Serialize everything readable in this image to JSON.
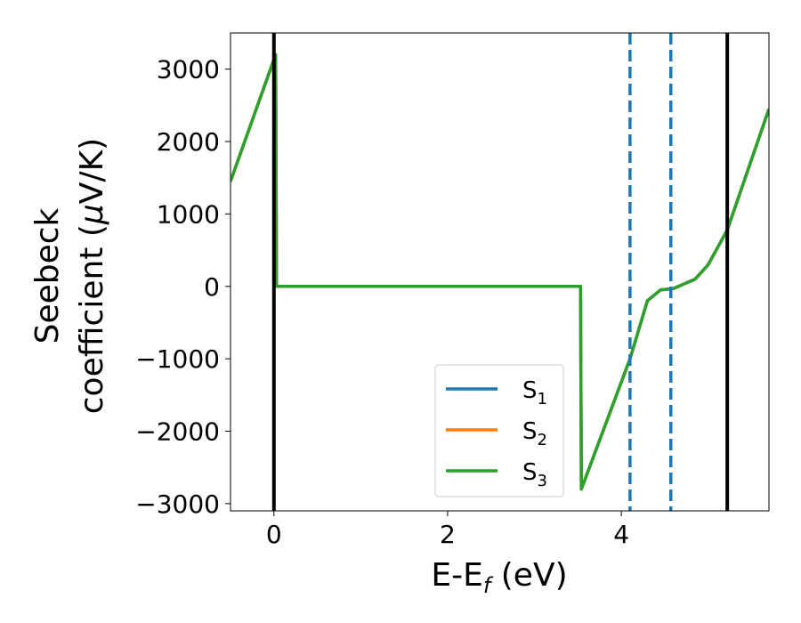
{
  "chart_data": {
    "type": "line",
    "xlabel": "E-E",
    "xlabel_sub": "f",
    "xlabel_unit": " (eV)",
    "ylabel_line1": "Seebeck",
    "ylabel_line2": "coefficient  (",
    "ylabel_mu": "μ",
    "ylabel_unit": "V/K)",
    "xlim": [
      -0.5,
      5.7
    ],
    "ylim": [
      -3100,
      3500
    ],
    "x_ticks": [
      0,
      2,
      4
    ],
    "x_tick_labels": [
      "0",
      "2",
      "4"
    ],
    "y_ticks": [
      3000,
      2000,
      1000,
      0,
      -1000,
      -2000,
      -3000
    ],
    "y_tick_labels": [
      "3000",
      "2000",
      "1000",
      "0",
      "−1000",
      "−2000",
      "−3000"
    ],
    "grid": false,
    "legend_position": "lower-right",
    "vertical_lines": [
      {
        "x": 0.0,
        "style": "solid",
        "color": "#000000"
      },
      {
        "x": 5.22,
        "style": "solid",
        "color": "#000000"
      },
      {
        "x": 4.1,
        "style": "dashed",
        "color": "#1f77b4"
      },
      {
        "x": 4.57,
        "style": "dashed",
        "color": "#1f77b4"
      }
    ],
    "series": [
      {
        "name": "S",
        "sub": "1",
        "color": "#1f77b4",
        "points": [
          [
            -0.5,
            1450
          ],
          [
            0.02,
            3200
          ],
          [
            0.03,
            0
          ],
          [
            3.53,
            0
          ],
          [
            3.54,
            -2800
          ],
          [
            4.1,
            -1000
          ],
          [
            4.3,
            -200
          ],
          [
            4.45,
            -50
          ],
          [
            4.6,
            -30
          ],
          [
            4.85,
            100
          ],
          [
            5.0,
            300
          ],
          [
            5.22,
            780
          ],
          [
            5.7,
            2450
          ]
        ]
      },
      {
        "name": "S",
        "sub": "2",
        "color": "#ff7f0e",
        "points": [
          [
            -0.5,
            1450
          ],
          [
            0.02,
            3200
          ],
          [
            0.03,
            0
          ],
          [
            3.53,
            0
          ],
          [
            3.54,
            -2800
          ],
          [
            4.1,
            -1000
          ],
          [
            4.3,
            -200
          ],
          [
            4.45,
            -50
          ],
          [
            4.6,
            -30
          ],
          [
            4.85,
            100
          ],
          [
            5.0,
            300
          ],
          [
            5.22,
            780
          ],
          [
            5.7,
            2450
          ]
        ]
      },
      {
        "name": "S",
        "sub": "3",
        "color": "#2ca02c",
        "points": [
          [
            -0.5,
            1450
          ],
          [
            0.02,
            3200
          ],
          [
            0.03,
            0
          ],
          [
            3.53,
            0
          ],
          [
            3.54,
            -2800
          ],
          [
            4.1,
            -1000
          ],
          [
            4.3,
            -200
          ],
          [
            4.45,
            -50
          ],
          [
            4.6,
            -30
          ],
          [
            4.85,
            100
          ],
          [
            5.0,
            300
          ],
          [
            5.22,
            780
          ],
          [
            5.7,
            2450
          ]
        ]
      }
    ]
  }
}
